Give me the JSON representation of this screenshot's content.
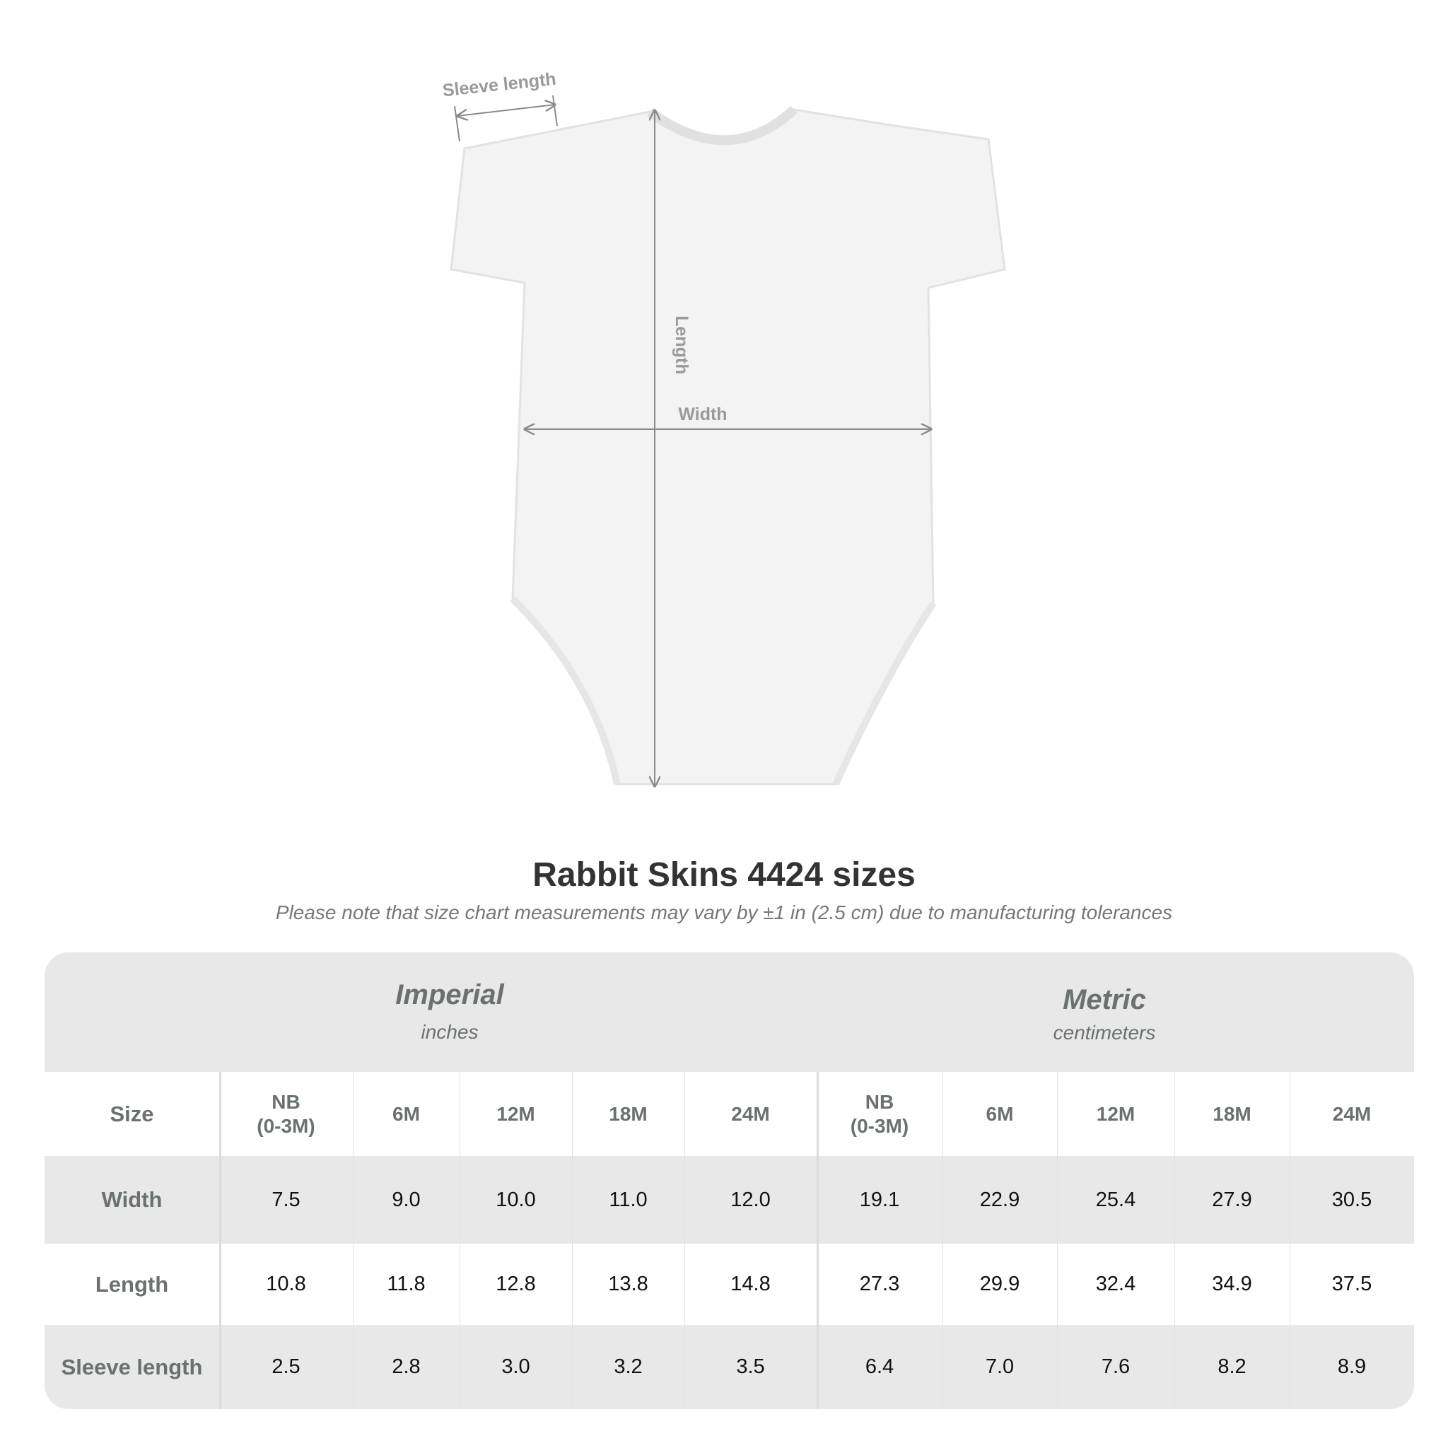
{
  "diagram": {
    "labels": {
      "sleeve": "Sleeve length",
      "length": "Length",
      "width": "Width"
    }
  },
  "title": "Rabbit Skins 4424 sizes",
  "subtitle": "Please note that size chart measurements may vary by ±1 in (2.5 cm) due to manufacturing tolerances",
  "table": {
    "imperial": {
      "name": "Imperial",
      "unit": "inches"
    },
    "metric": {
      "name": "Metric",
      "unit": "centimeters"
    },
    "size_label": "Size",
    "sizes": [
      "NB\n(0-3M)",
      "6M",
      "12M",
      "18M",
      "24M",
      "NB\n(0-3M)",
      "6M",
      "12M",
      "18M",
      "24M"
    ],
    "rows": [
      {
        "label": "Width",
        "values": [
          "7.5",
          "9.0",
          "10.0",
          "11.0",
          "12.0",
          "19.1",
          "22.9",
          "25.4",
          "27.9",
          "30.5"
        ]
      },
      {
        "label": "Length",
        "values": [
          "10.8",
          "11.8",
          "12.8",
          "13.8",
          "14.8",
          "27.3",
          "29.9",
          "32.4",
          "34.9",
          "37.5"
        ]
      },
      {
        "label": "Sleeve length",
        "values": [
          "2.5",
          "2.8",
          "3.0",
          "3.2",
          "3.5",
          "6.4",
          "7.0",
          "7.6",
          "8.2",
          "8.9"
        ]
      }
    ]
  },
  "colors": {
    "header_band": "#e8e8e8",
    "label_text": "#6b7070",
    "title_text": "#333333"
  }
}
